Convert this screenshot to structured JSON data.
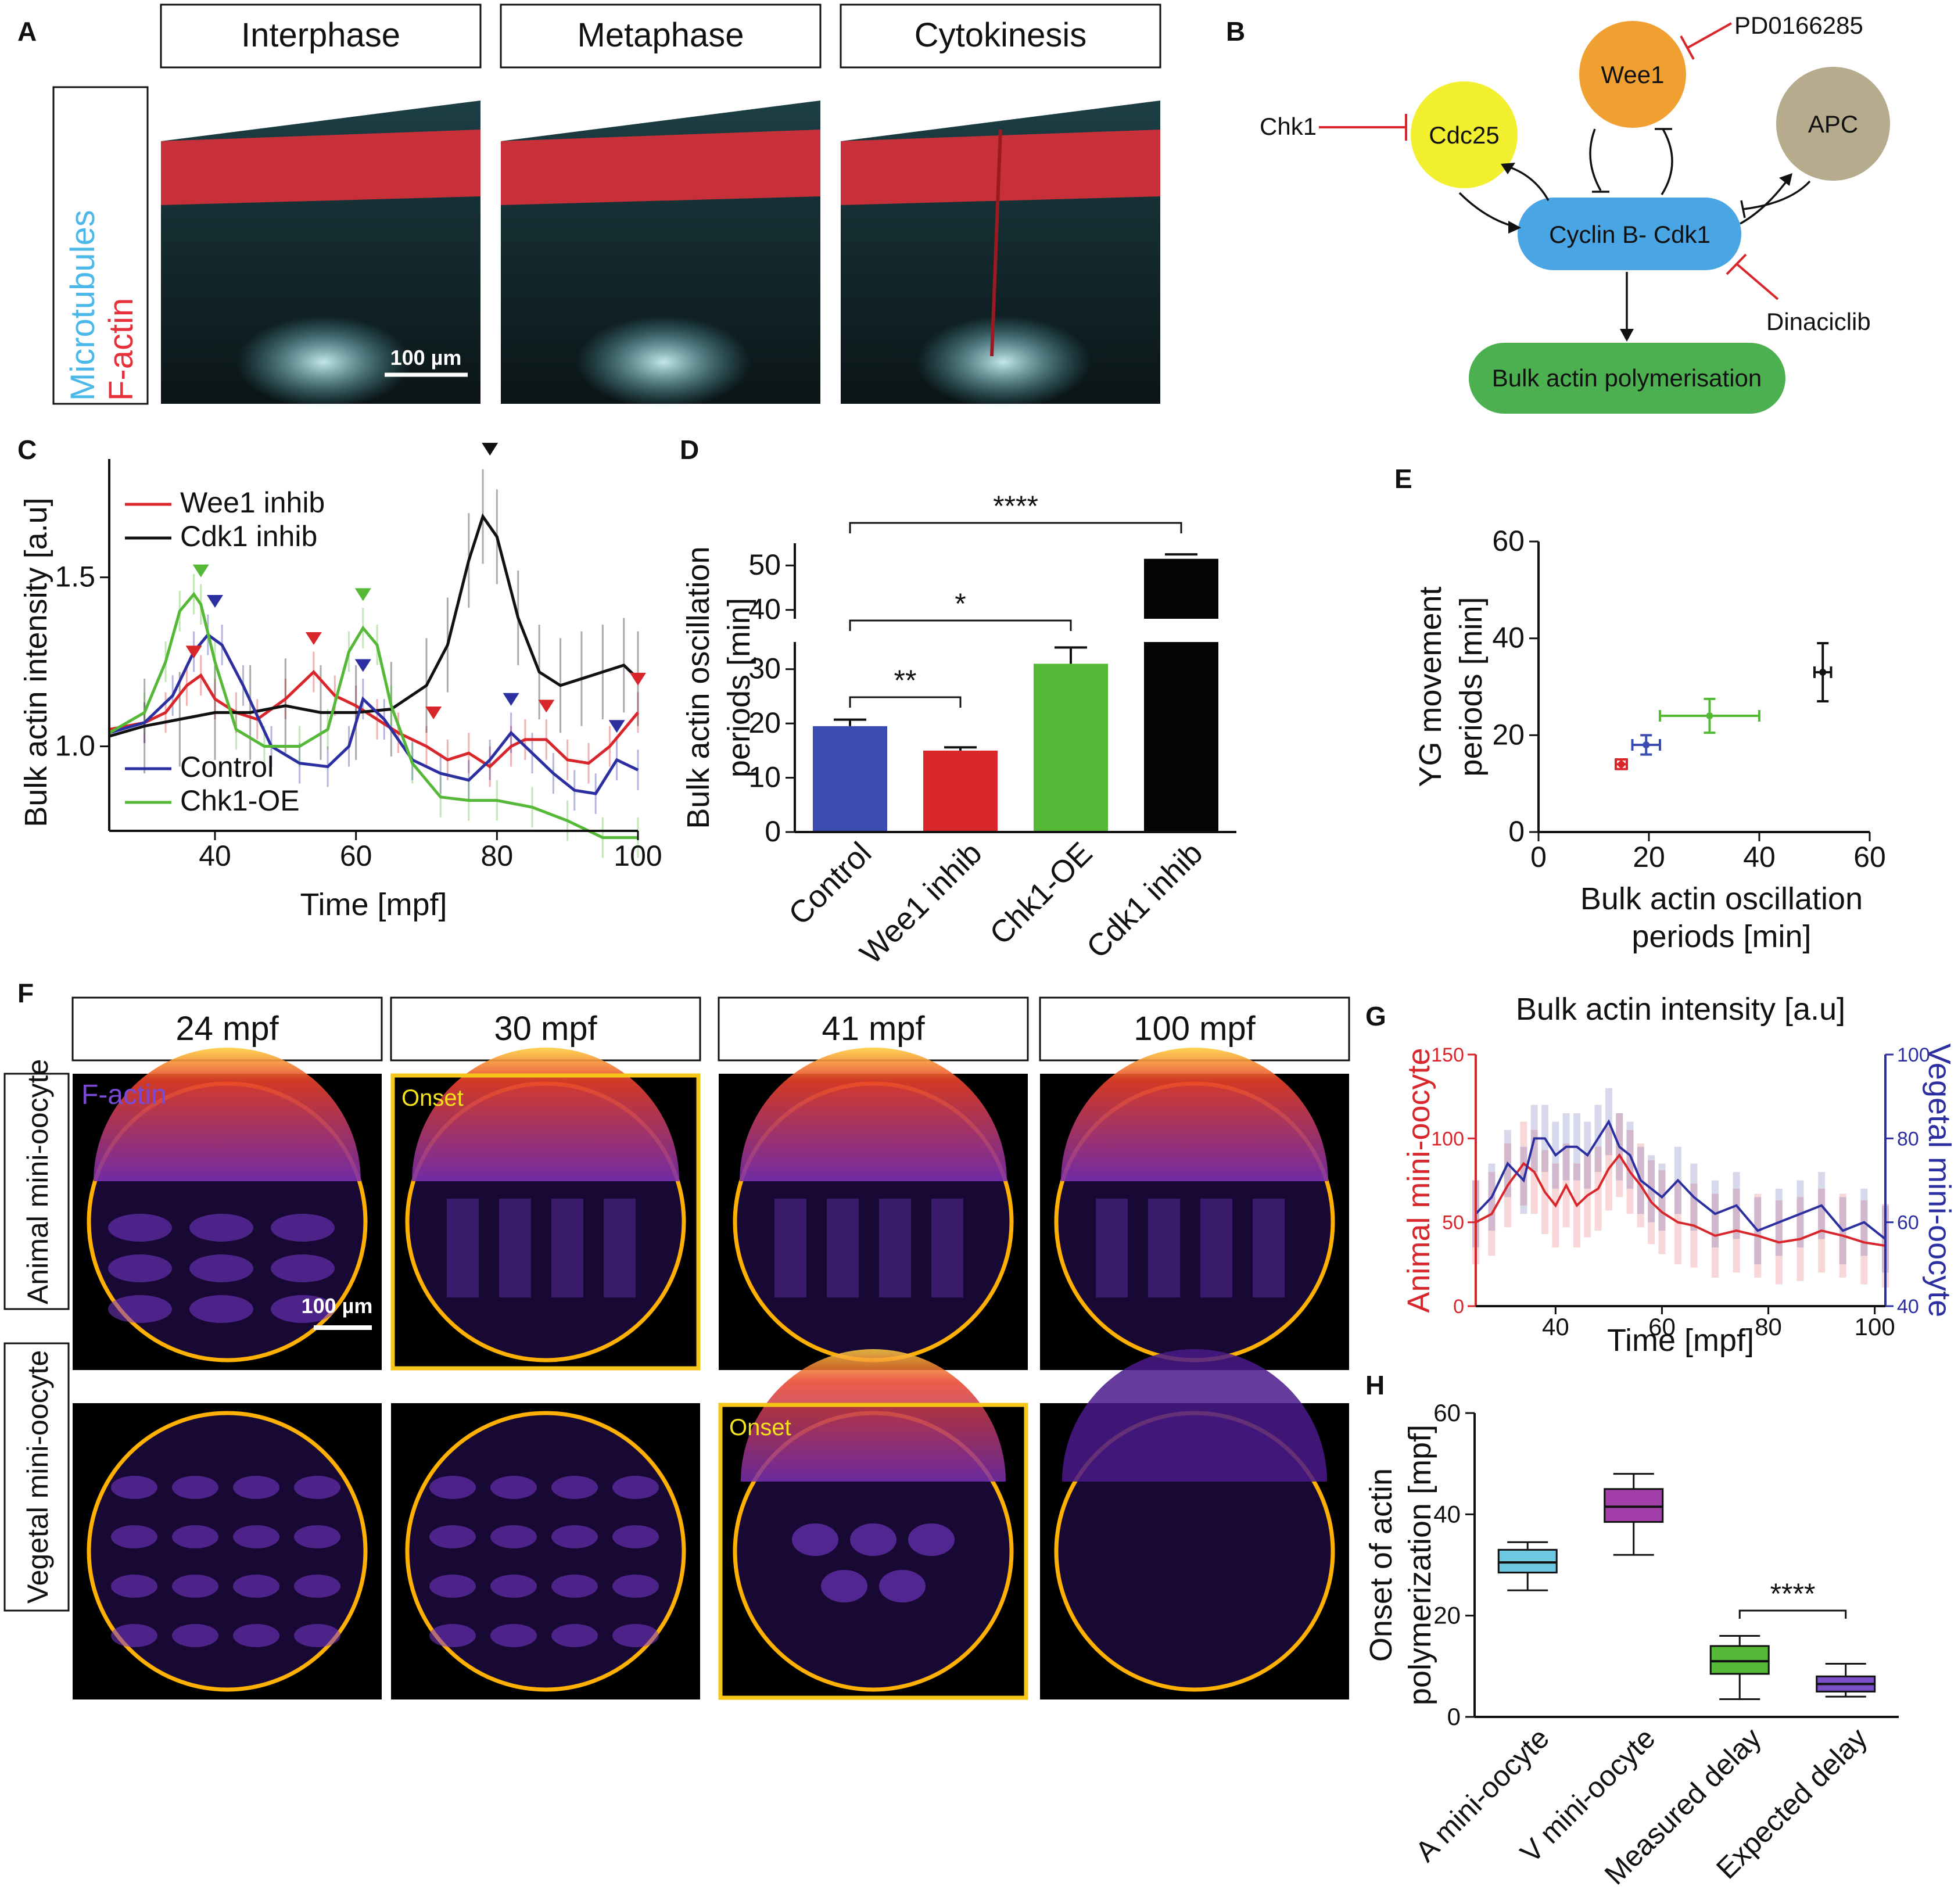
{
  "panels": {
    "A": {
      "label": "A",
      "stages": [
        "Interphase",
        "Metaphase",
        "Cytokinesis"
      ],
      "side_label_1": "Microtubules",
      "side_label_2": "F-actin",
      "scalebar": "100 µm",
      "colors": {
        "microtubules": "#5bc6d6",
        "factin": "#e8303a"
      }
    },
    "B": {
      "label": "B",
      "nodes": {
        "cdc25": "Cdc25",
        "wee1": "Wee1",
        "apc": "APC",
        "cdk1": "Cyclin B- Cdk1",
        "bulk": "Bulk actin polymerisation"
      },
      "inhibitors": {
        "chk1": "Chk1",
        "pd": "PD0166285",
        "dina": "Dinaciclib"
      },
      "colors": {
        "cdc25": "#f2ef2e",
        "wee1": "#f0a030",
        "apc": "#b7ab8e",
        "cdk1": "#4aa5e4",
        "bulk": "#4caf50",
        "inhibit": "#d9262b"
      }
    },
    "C": {
      "label": "C"
    },
    "D": {
      "label": "D"
    },
    "E": {
      "label": "E"
    },
    "F": {
      "label": "F",
      "times": [
        "24 mpf",
        "30 mpf",
        "41 mpf",
        "100 mpf"
      ],
      "row_labels": [
        "Animal mini-oocyte",
        "Vegetal mini-oocyte"
      ],
      "stain_label": "F-actin",
      "onset_label": "Onset",
      "scalebar": "100 µm",
      "onset_frames": [
        {
          "row": 0,
          "col": 1
        },
        {
          "row": 1,
          "col": 2
        }
      ],
      "colors": {
        "onset_frame": "#f5c518",
        "ring": "#ffb000",
        "cyto": "#7a3bd0"
      }
    },
    "G": {
      "label": "G"
    },
    "H": {
      "label": "H"
    }
  },
  "chart_data": [
    {
      "id": "C",
      "type": "line",
      "xlabel": "Time [mpf]",
      "ylabel": "Bulk actin intensity [a.u]",
      "xlim": [
        25,
        100
      ],
      "ylim": [
        0.75,
        1.85
      ],
      "xticks": [
        40,
        60,
        80,
        100
      ],
      "yticks": [
        1.0,
        1.5
      ],
      "ytick_labels": [
        "1.0",
        "1.5"
      ],
      "series": [
        {
          "name": "Wee1 inhib",
          "color": "#d9262b",
          "x": [
            25,
            30,
            33,
            36,
            38,
            40,
            43,
            46,
            50,
            54,
            57,
            60,
            63,
            66,
            70,
            73,
            76,
            79,
            82,
            84,
            87,
            90,
            93,
            96,
            100
          ],
          "y": [
            1.05,
            1.07,
            1.1,
            1.18,
            1.21,
            1.14,
            1.1,
            1.08,
            1.14,
            1.22,
            1.15,
            1.12,
            1.08,
            1.04,
            1.0,
            0.96,
            0.98,
            0.94,
            1.0,
            1.02,
            1.02,
            0.96,
            0.95,
            1.0,
            1.1
          ]
        },
        {
          "name": "Cdk1 inhib",
          "color": "#111111",
          "x": [
            25,
            30,
            35,
            40,
            45,
            50,
            55,
            60,
            65,
            70,
            73,
            76,
            78,
            80,
            83,
            86,
            89,
            92,
            95,
            98,
            100
          ],
          "y": [
            1.03,
            1.06,
            1.08,
            1.1,
            1.1,
            1.12,
            1.1,
            1.1,
            1.11,
            1.18,
            1.3,
            1.55,
            1.68,
            1.62,
            1.38,
            1.22,
            1.18,
            1.2,
            1.22,
            1.24,
            1.2
          ]
        },
        {
          "name": "Control",
          "color": "#2b2fa0",
          "x": [
            25,
            30,
            34,
            37,
            39,
            41,
            44,
            48,
            52,
            56,
            59,
            61,
            64,
            68,
            72,
            76,
            79,
            82,
            85,
            88,
            91,
            94,
            97,
            100
          ],
          "y": [
            1.04,
            1.07,
            1.15,
            1.28,
            1.33,
            1.3,
            1.18,
            1.0,
            0.95,
            0.94,
            1.0,
            1.14,
            1.08,
            0.96,
            0.92,
            0.9,
            0.96,
            1.04,
            0.98,
            0.92,
            0.87,
            0.86,
            0.96,
            0.93
          ]
        },
        {
          "name": "Chk1-OE",
          "color": "#55b837",
          "x": [
            25,
            30,
            33,
            35,
            37,
            38,
            40,
            43,
            47,
            52,
            56,
            59,
            61,
            63,
            65,
            68,
            72,
            76,
            80,
            85,
            90,
            95,
            100
          ],
          "y": [
            1.04,
            1.1,
            1.25,
            1.4,
            1.45,
            1.42,
            1.25,
            1.05,
            1.0,
            1.0,
            1.05,
            1.28,
            1.35,
            1.3,
            1.12,
            0.95,
            0.85,
            0.84,
            0.84,
            0.82,
            0.78,
            0.73,
            0.73
          ]
        }
      ],
      "peak_markers": {
        "Wee1 inhib": [
          37,
          54,
          71,
          87,
          100
        ],
        "Cdk1 inhib": [
          79
        ],
        "Control": [
          40,
          61,
          82,
          97
        ],
        "Chk1-OE": [
          38,
          61
        ]
      }
    },
    {
      "id": "D",
      "type": "bar",
      "ylabel": "Bulk actin oscillation periods [min]",
      "categories": [
        "Control",
        "Wee1 inhib",
        "Chk1-OE",
        "Cdk1 inhib"
      ],
      "values": [
        19.5,
        15.0,
        31.0,
        51.5
      ],
      "errors": [
        1.2,
        0.6,
        3.0,
        1.0
      ],
      "colors": [
        "#3a4cb0",
        "#d9262b",
        "#55b837",
        "#050505"
      ],
      "lower_yticks": [
        0,
        10,
        20,
        30
      ],
      "upper_yticks": [
        40,
        50
      ],
      "axis_break": [
        35,
        38
      ],
      "significance": [
        {
          "from": 0,
          "to": 1,
          "label": "**"
        },
        {
          "from": 0,
          "to": 2,
          "label": "*"
        },
        {
          "from": 0,
          "to": 3,
          "label": "****"
        }
      ]
    },
    {
      "id": "E",
      "type": "scatter",
      "xlabel": "Bulk actin oscillation periods [min]",
      "ylabel": "YG movement periods [min]",
      "xlim": [
        0,
        60
      ],
      "ylim": [
        0,
        60
      ],
      "xticks": [
        0,
        20,
        40,
        60
      ],
      "yticks": [
        0,
        20,
        40,
        60
      ],
      "points": [
        {
          "x": 15.0,
          "y": 14.0,
          "xerr": 1.0,
          "yerr": 1.0,
          "color": "#d9262b"
        },
        {
          "x": 19.5,
          "y": 18.0,
          "xerr": 2.5,
          "yerr": 2.0,
          "color": "#3a4cb0"
        },
        {
          "x": 31.0,
          "y": 24.0,
          "xerr": 9.0,
          "yerr": 3.5,
          "color": "#55b837"
        },
        {
          "x": 51.5,
          "y": 33.0,
          "xerr": 1.5,
          "yerr": 6.0,
          "color": "#111111"
        }
      ]
    },
    {
      "id": "G",
      "type": "line",
      "title": "Bulk actin intensity [a.u]",
      "xlabel": "Time [mpf]",
      "ylabel_left": "Animal mini-oocyte",
      "ylabel_right": "Vegetal mini-oocyte",
      "xlim": [
        25,
        102
      ],
      "ylim_left": [
        0,
        150
      ],
      "ylim_right": [
        40,
        100
      ],
      "xticks": [
        40,
        60,
        80,
        100
      ],
      "yticks_left": [
        0,
        50,
        100,
        150
      ],
      "yticks_right": [
        40,
        60,
        80,
        100
      ],
      "series": [
        {
          "name": "Animal mini-oocyte",
          "color": "#d9262b",
          "axis": "left",
          "x": [
            25,
            28,
            31,
            34,
            36,
            38,
            40,
            42,
            44,
            46,
            48,
            50,
            52,
            54,
            56,
            58,
            60,
            63,
            66,
            70,
            74,
            78,
            82,
            86,
            90,
            94,
            98,
            102
          ],
          "y": [
            50,
            55,
            72,
            85,
            80,
            68,
            60,
            72,
            60,
            66,
            70,
            82,
            90,
            80,
            72,
            62,
            56,
            50,
            48,
            42,
            45,
            42,
            38,
            40,
            45,
            42,
            38,
            36
          ]
        },
        {
          "name": "Vegetal mini-oocyte",
          "color": "#2b2fa0",
          "axis": "right",
          "x": [
            25,
            28,
            31,
            34,
            36,
            38,
            40,
            42,
            44,
            46,
            48,
            50,
            52,
            54,
            56,
            58,
            60,
            63,
            66,
            70,
            74,
            78,
            82,
            86,
            90,
            94,
            98,
            102
          ],
          "y": [
            62,
            66,
            74,
            70,
            80,
            80,
            76,
            78,
            78,
            76,
            80,
            84,
            78,
            76,
            70,
            68,
            66,
            70,
            66,
            62,
            64,
            58,
            60,
            62,
            64,
            58,
            60,
            56
          ]
        }
      ]
    },
    {
      "id": "H",
      "type": "box",
      "ylabel": "Onset of actin polymerization [mpf]",
      "categories": [
        "A mini-oocyte",
        "V mini-oocyte",
        "Measured delay",
        "Expected delay"
      ],
      "ylim": [
        0,
        60
      ],
      "yticks": [
        0,
        20,
        40,
        60
      ],
      "boxes": [
        {
          "min": 25,
          "q1": 28.5,
          "median": 30.5,
          "q3": 33,
          "max": 34.5,
          "color": "#6cc7e0"
        },
        {
          "min": 32,
          "q1": 38.5,
          "median": 41.5,
          "q3": 45,
          "max": 48,
          "color": "#a23fa8"
        },
        {
          "min": 3.5,
          "q1": 8.5,
          "median": 11,
          "q3": 14,
          "max": 16,
          "color": "#55b837"
        },
        {
          "min": 4,
          "q1": 5,
          "median": 6.5,
          "q3": 8,
          "max": 10.5,
          "color": "#7b4fc8"
        }
      ],
      "significance": [
        {
          "from": 2,
          "to": 3,
          "label": "****"
        }
      ]
    }
  ]
}
